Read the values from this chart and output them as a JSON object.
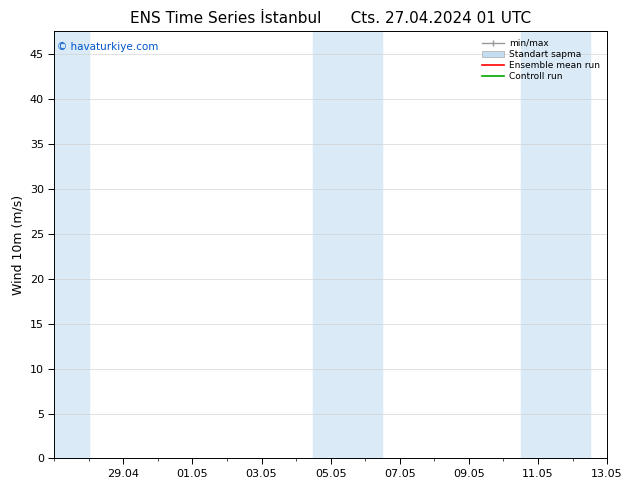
{
  "title": "ENS Time Series İstanbul      Cts. 27.04.2024 01 UTC",
  "ylabel": "Wind 10m (m/s)",
  "watermark": "© havaturkiye.com",
  "bg_color": "#ffffff",
  "plot_bg_color": "#ffffff",
  "ylim": [
    0,
    47.5
  ],
  "yticks": [
    0,
    5,
    10,
    15,
    20,
    25,
    30,
    35,
    40,
    45
  ],
  "xlabel_ticks": [
    "29.04",
    "01.05",
    "03.05",
    "05.05",
    "07.05",
    "09.05",
    "11.05",
    "13.05"
  ],
  "shaded_band_color": "#daeaf7",
  "legend_labels": [
    "min/max",
    "Standart sapma",
    "Ensemble mean run",
    "Controll run"
  ],
  "legend_colors": [
    "#aaaaaa",
    "#c5ddf0",
    "#ff0000",
    "#00aa00"
  ],
  "title_fontsize": 11,
  "tick_fontsize": 8,
  "ylabel_fontsize": 9,
  "watermark_color": "#0055cc",
  "shaded_regions": [
    {
      "xstart": 0.0,
      "xend": 1.0
    },
    {
      "xstart": 7.5,
      "xend": 9.5
    },
    {
      "xstart": 13.5,
      "xend": 15.5
    }
  ],
  "x_tick_positions": [
    2,
    4,
    6,
    8,
    10,
    12,
    14,
    16
  ],
  "x_min": 0.0,
  "x_max": 16.0,
  "figwidth": 6.34,
  "figheight": 4.9,
  "dpi": 100
}
